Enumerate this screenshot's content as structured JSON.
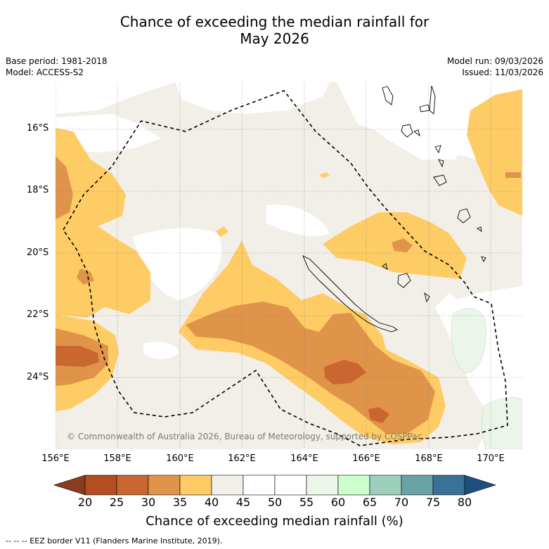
{
  "title_line1": "Chance of exceeding the median rainfall for",
  "title_line2": "May 2026",
  "meta": {
    "base_period": "Base period: 1981-2018",
    "model": "Model: ACCESS-S2",
    "model_run": "Model run: 09/03/2026",
    "issued": "Issued: 11/03/2026"
  },
  "y_axis": [
    "16°S",
    "18°S",
    "20°S",
    "22°S",
    "24°S"
  ],
  "x_axis": [
    "156°E",
    "158°E",
    "160°E",
    "162°E",
    "164°E",
    "166°E",
    "168°E",
    "170°E"
  ],
  "copyright": "© Commonwealth of Australia 2026, Bureau of Meteorology, supported by COSPPac",
  "colorbar": {
    "ticks": [
      "20",
      "25",
      "30",
      "35",
      "40",
      "45",
      "50",
      "55",
      "60",
      "65",
      "70",
      "75",
      "80"
    ],
    "colors": [
      "#8c3c1e",
      "#b44e22",
      "#ca6630",
      "#e0944a",
      "#fecc65",
      "#f2eee8",
      "#ffffff",
      "#ffffff",
      "#ebf5ea",
      "#ccffcc",
      "#9ecfbc",
      "#6aa3a6",
      "#3a7196",
      "#1e4f7e"
    ],
    "title": "Chance of exceeding median rainfall (%)"
  },
  "footer": "--  --  -- EEZ border V11 (Flanders Marine Institute, 2019)."
}
